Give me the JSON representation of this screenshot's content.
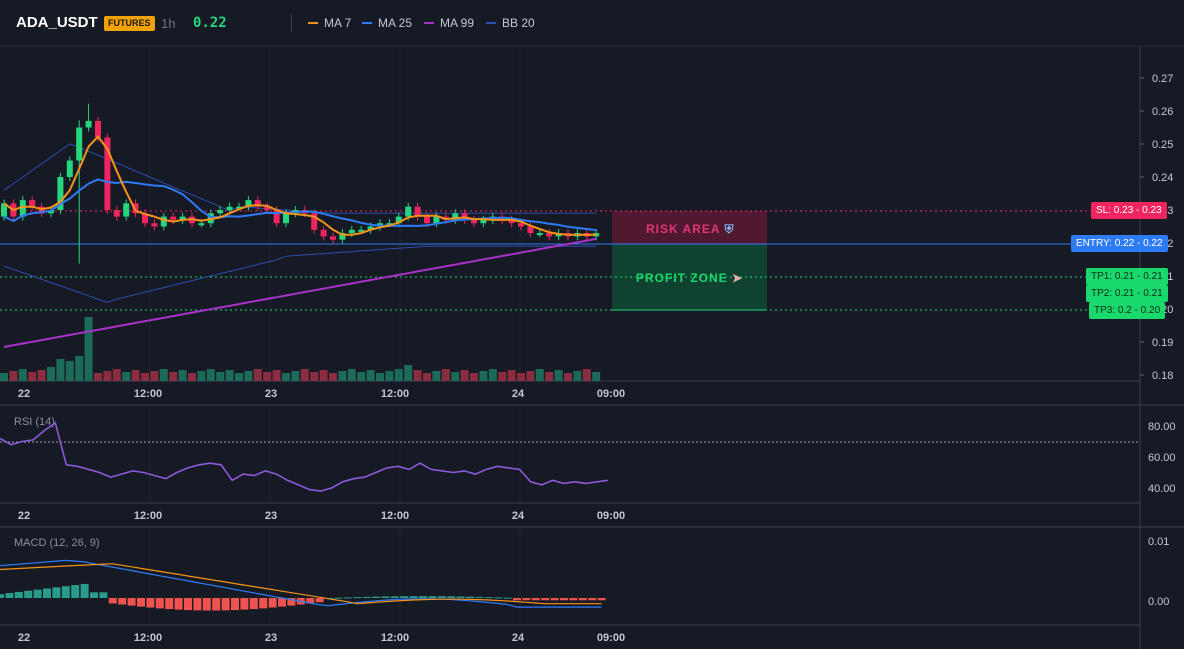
{
  "header": {
    "symbol": "ADA_USDT",
    "badge": "FUTURES",
    "interval": "1h",
    "price": "0.22",
    "legend": [
      {
        "label": "MA 7",
        "color": "#f7931a"
      },
      {
        "label": "MA 25",
        "color": "#2f7bf5"
      },
      {
        "label": "MA 99",
        "color": "#a933c9"
      },
      {
        "label": "BB 20",
        "color": "#2b4fb0"
      }
    ]
  },
  "price_axis": [
    "0.27",
    "0.26",
    "0.25",
    "0.24",
    "0.23",
    "0.22",
    "0.21",
    "0.20",
    "0.19",
    "0.18"
  ],
  "time_axis": [
    "22",
    "12:00",
    "23",
    "12:00",
    "24",
    "09:00"
  ],
  "rsi": {
    "title": "RSI (14)",
    "axis": [
      "80.00",
      "60.00",
      "40.00"
    ],
    "values": [
      72,
      68,
      70,
      71,
      77,
      82,
      55,
      54,
      52,
      50,
      47,
      49,
      51,
      50,
      48,
      46,
      50,
      53,
      55,
      56,
      55,
      45,
      49,
      48,
      51,
      49,
      45,
      42,
      39,
      38,
      40,
      44,
      46,
      47,
      50,
      53,
      54,
      52,
      56,
      52,
      51,
      50,
      51,
      49,
      52,
      54,
      53,
      52,
      44,
      42,
      45,
      43,
      44,
      43,
      44,
      45
    ]
  },
  "macd": {
    "title": "MACD (12, 26, 9)",
    "axis": [
      "0.01",
      "0.00"
    ]
  },
  "trade": {
    "sl_label": "SL: 0.23 - 0.23",
    "entry_label": "ENTRY: 0.22 - 0.22",
    "tp1_label": "TP1: 0.21 - 0.21",
    "tp2_label": "TP2: 0.21 - 0.21",
    "tp3_label": "TP3: 0.2 - 0.20",
    "risk_label": "RISK AREA",
    "profit_label": "PROFIT ZONE",
    "colors": {
      "sl": "#f0245e",
      "entry": "#2f7bf5",
      "tp": "#19d96d",
      "up": "#26d67c",
      "down": "#f0245e"
    }
  },
  "chart_data": {
    "type": "candlestick",
    "close_values": [
      0.232,
      0.228,
      0.233,
      0.231,
      0.229,
      0.23,
      0.24,
      0.245,
      0.255,
      0.257,
      0.252,
      0.23,
      0.228,
      0.232,
      0.229,
      0.226,
      0.225,
      0.228,
      0.227,
      0.228,
      0.226,
      0.226,
      0.229,
      0.23,
      0.231,
      0.231,
      0.233,
      0.231,
      0.23,
      0.226,
      0.229,
      0.23,
      0.229,
      0.224,
      0.222,
      0.221,
      0.223,
      0.224,
      0.224,
      0.225,
      0.226,
      0.226,
      0.228,
      0.231,
      0.228,
      0.226,
      0.228,
      0.227,
      0.229,
      0.227,
      0.226,
      0.227,
      0.228,
      0.227,
      0.226,
      0.225,
      0.223,
      0.223,
      0.222,
      0.223,
      0.222,
      0.223,
      0.222,
      0.223
    ],
    "y_range": [
      0.18,
      0.275
    ]
  }
}
